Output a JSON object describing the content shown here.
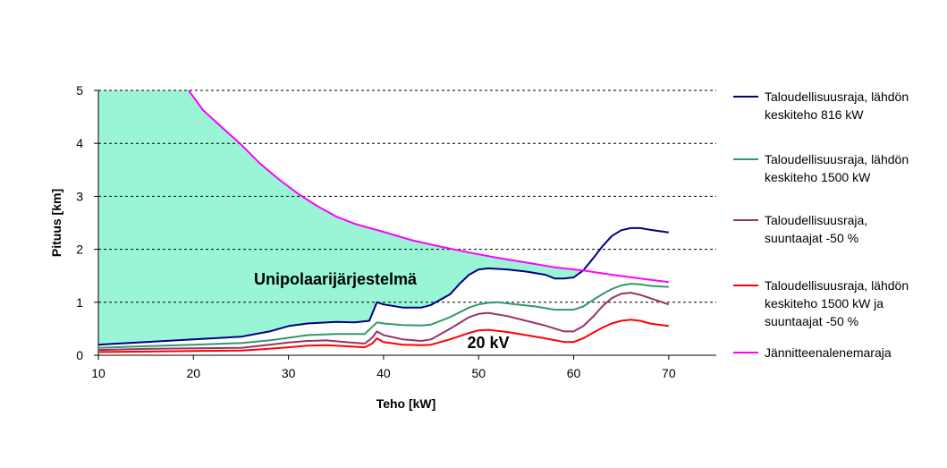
{
  "chart_data": {
    "type": "line",
    "xlabel": "Teho [kW]",
    "ylabel": "Pituus [km]",
    "xlim": [
      10,
      75
    ],
    "ylim": [
      0,
      5
    ],
    "xticks": [
      10,
      20,
      30,
      40,
      50,
      60,
      70
    ],
    "yticks": [
      0,
      1,
      2,
      3,
      4,
      5
    ],
    "grid": "horizontal dashed",
    "legend_position": "right",
    "annotations": [
      {
        "id": "region",
        "text": "Unipolaarijärjestelmä",
        "x": 34.5,
        "y": 1.4
      },
      {
        "id": "kv",
        "text": "20 kV",
        "x": 50.5,
        "y": 0.2
      }
    ],
    "fill": {
      "description_color": "#99F5D6",
      "between": [
        "Jännitteenalenemaraja",
        "Taloudellisuusraja, lähdön keskiteho 816 kW"
      ]
    },
    "series": [
      {
        "name_lines": [
          "Taloudellisuusraja, lähdön",
          "keskiteho 816 kW"
        ],
        "color": "#000080",
        "points": [
          [
            10,
            0.2
          ],
          [
            15,
            0.25
          ],
          [
            20,
            0.3
          ],
          [
            25,
            0.35
          ],
          [
            28,
            0.45
          ],
          [
            30,
            0.55
          ],
          [
            32,
            0.6
          ],
          [
            35,
            0.63
          ],
          [
            37,
            0.62
          ],
          [
            38.5,
            0.65
          ],
          [
            39.3,
            1.0
          ],
          [
            40,
            0.96
          ],
          [
            42,
            0.9
          ],
          [
            44,
            0.9
          ],
          [
            45,
            0.95
          ],
          [
            47,
            1.15
          ],
          [
            48,
            1.35
          ],
          [
            49,
            1.52
          ],
          [
            50,
            1.62
          ],
          [
            51,
            1.64
          ],
          [
            53,
            1.62
          ],
          [
            55,
            1.58
          ],
          [
            57,
            1.52
          ],
          [
            58,
            1.45
          ],
          [
            59,
            1.45
          ],
          [
            60,
            1.47
          ],
          [
            61,
            1.6
          ],
          [
            62,
            1.82
          ],
          [
            63,
            2.05
          ],
          [
            64,
            2.25
          ],
          [
            65,
            2.36
          ],
          [
            66,
            2.4
          ],
          [
            67,
            2.4
          ],
          [
            68,
            2.37
          ],
          [
            70,
            2.32
          ]
        ]
      },
      {
        "name_lines": [
          "Taloudellisuusraja, lähdön",
          "keskiteho 1500 kW"
        ],
        "color": "#339966",
        "points": [
          [
            10,
            0.14
          ],
          [
            15,
            0.17
          ],
          [
            20,
            0.2
          ],
          [
            25,
            0.23
          ],
          [
            28,
            0.28
          ],
          [
            30,
            0.33
          ],
          [
            32,
            0.38
          ],
          [
            35,
            0.4
          ],
          [
            38,
            0.4
          ],
          [
            39.3,
            0.62
          ],
          [
            40,
            0.6
          ],
          [
            42,
            0.57
          ],
          [
            44,
            0.56
          ],
          [
            45,
            0.58
          ],
          [
            47,
            0.72
          ],
          [
            49,
            0.9
          ],
          [
            50,
            0.96
          ],
          [
            51,
            0.99
          ],
          [
            52,
            1.0
          ],
          [
            54,
            0.96
          ],
          [
            56,
            0.92
          ],
          [
            58,
            0.86
          ],
          [
            60,
            0.86
          ],
          [
            61,
            0.92
          ],
          [
            62,
            1.04
          ],
          [
            63,
            1.15
          ],
          [
            64,
            1.25
          ],
          [
            65,
            1.32
          ],
          [
            66,
            1.35
          ],
          [
            67,
            1.34
          ],
          [
            68,
            1.31
          ],
          [
            70,
            1.29
          ]
        ]
      },
      {
        "name_lines": [
          "Taloudellisuusraja,",
          "suuntaajat -50 %"
        ],
        "color": "#993366",
        "points": [
          [
            10,
            0.1
          ],
          [
            15,
            0.12
          ],
          [
            20,
            0.13
          ],
          [
            25,
            0.14
          ],
          [
            28,
            0.2
          ],
          [
            30,
            0.24
          ],
          [
            32,
            0.27
          ],
          [
            34,
            0.28
          ],
          [
            36,
            0.25
          ],
          [
            38,
            0.22
          ],
          [
            38.8,
            0.33
          ],
          [
            39.3,
            0.45
          ],
          [
            40,
            0.38
          ],
          [
            42,
            0.3
          ],
          [
            44,
            0.27
          ],
          [
            45,
            0.3
          ],
          [
            47,
            0.5
          ],
          [
            49,
            0.72
          ],
          [
            50,
            0.78
          ],
          [
            51,
            0.8
          ],
          [
            53,
            0.74
          ],
          [
            55,
            0.65
          ],
          [
            57,
            0.56
          ],
          [
            59,
            0.45
          ],
          [
            60,
            0.45
          ],
          [
            61,
            0.55
          ],
          [
            62,
            0.72
          ],
          [
            63,
            0.92
          ],
          [
            64,
            1.08
          ],
          [
            65,
            1.16
          ],
          [
            66,
            1.18
          ],
          [
            67,
            1.14
          ],
          [
            68,
            1.08
          ],
          [
            70,
            0.96
          ]
        ]
      },
      {
        "name_lines": [
          "Taloudellisuusraja, lähdön",
          "keskiteho 1500 kW ja",
          "suuntaajat -50 %"
        ],
        "color": "#FF0000",
        "points": [
          [
            10,
            0.06
          ],
          [
            15,
            0.07
          ],
          [
            20,
            0.08
          ],
          [
            25,
            0.09
          ],
          [
            27,
            0.11
          ],
          [
            30,
            0.15
          ],
          [
            32,
            0.18
          ],
          [
            34,
            0.19
          ],
          [
            36,
            0.17
          ],
          [
            38,
            0.15
          ],
          [
            38.8,
            0.22
          ],
          [
            39.3,
            0.32
          ],
          [
            40,
            0.25
          ],
          [
            42,
            0.2
          ],
          [
            44,
            0.19
          ],
          [
            45,
            0.2
          ],
          [
            47,
            0.3
          ],
          [
            49,
            0.42
          ],
          [
            50,
            0.47
          ],
          [
            51,
            0.48
          ],
          [
            53,
            0.44
          ],
          [
            55,
            0.38
          ],
          [
            57,
            0.32
          ],
          [
            59,
            0.25
          ],
          [
            60,
            0.25
          ],
          [
            61,
            0.32
          ],
          [
            62,
            0.42
          ],
          [
            63,
            0.52
          ],
          [
            64,
            0.6
          ],
          [
            65,
            0.65
          ],
          [
            66,
            0.67
          ],
          [
            67,
            0.65
          ],
          [
            68,
            0.6
          ],
          [
            70,
            0.55
          ]
        ]
      },
      {
        "name_lines": [
          "Jännitteenalenemaraja"
        ],
        "color": "#FF00FF",
        "points": [
          [
            19.5,
            5.0
          ],
          [
            21,
            4.63
          ],
          [
            23,
            4.3
          ],
          [
            25,
            3.98
          ],
          [
            27,
            3.62
          ],
          [
            29,
            3.32
          ],
          [
            31,
            3.05
          ],
          [
            33,
            2.82
          ],
          [
            35,
            2.62
          ],
          [
            37,
            2.48
          ],
          [
            40,
            2.33
          ],
          [
            43,
            2.17
          ],
          [
            46,
            2.05
          ],
          [
            49,
            1.94
          ],
          [
            52,
            1.84
          ],
          [
            55,
            1.75
          ],
          [
            58,
            1.66
          ],
          [
            61,
            1.6
          ],
          [
            64,
            1.52
          ],
          [
            67,
            1.45
          ],
          [
            70,
            1.38
          ]
        ]
      }
    ]
  }
}
